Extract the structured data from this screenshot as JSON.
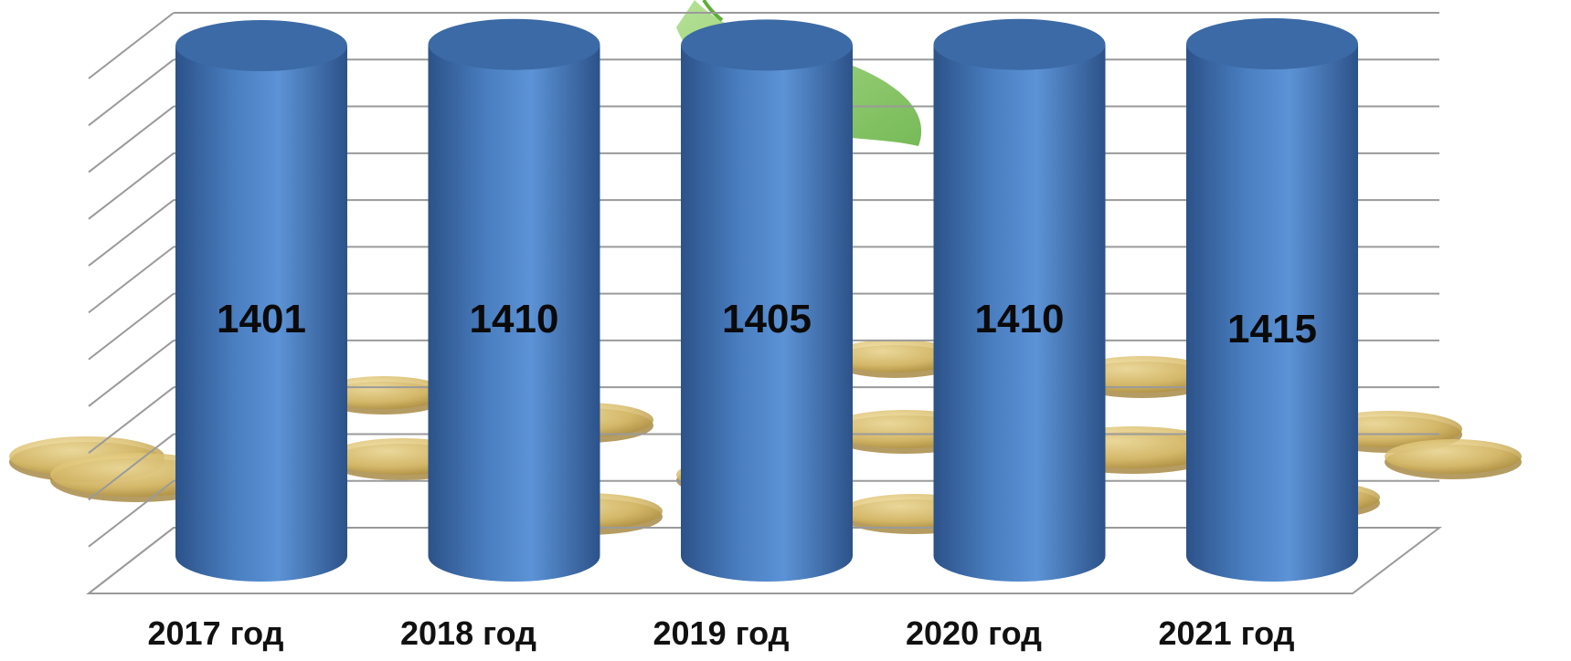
{
  "chart_data": {
    "type": "bar",
    "style": "3d-cylinder",
    "categories": [
      "2017 год",
      "2018 год",
      "2019 год",
      "2020 год",
      "2021 год"
    ],
    "series": [
      {
        "values": [
          1401,
          1410,
          1405,
          1410,
          1415
        ]
      }
    ],
    "data_labels": [
      "1401",
      "1410",
      "1405",
      "1410",
      "1415"
    ],
    "grid": true,
    "legend": "none",
    "value_axis_labels": "none",
    "background": "photo of gold coins with green plant leaf",
    "colors": {
      "bar": "#4a7fc1",
      "bar_dark": "#2c5289",
      "bar_light": "#5c93d6",
      "bar_top": "#3c6aa6",
      "grid": "#9a9a9a",
      "coin": "#d9bc6a",
      "coin_dark": "#9c7b2d",
      "leaf": "#5fae3a"
    }
  }
}
